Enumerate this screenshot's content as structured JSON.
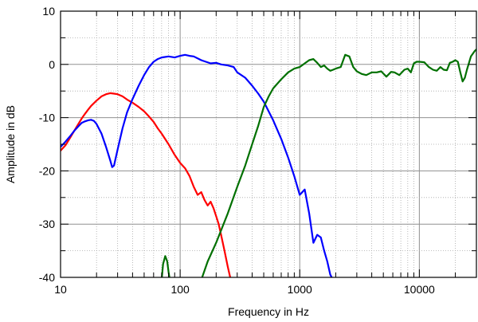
{
  "chart_data": {
    "type": "line",
    "xlabel": "Frequency in Hz",
    "ylabel": "Amplitude in dB",
    "x_scale": "log",
    "xlim": [
      10,
      30000
    ],
    "ylim": [
      -40,
      10
    ],
    "grid": true,
    "x_ticks": [
      {
        "value": 10,
        "label": "10"
      },
      {
        "value": 100,
        "label": "100"
      },
      {
        "value": 1000,
        "label": "1000"
      },
      {
        "value": 10000,
        "label": "10000"
      }
    ],
    "y_ticks": [
      {
        "value": 10,
        "label": "10"
      },
      {
        "value": 0,
        "label": "0"
      },
      {
        "value": -10,
        "label": "-10"
      },
      {
        "value": -20,
        "label": "-20"
      },
      {
        "value": -30,
        "label": "-30"
      },
      {
        "value": -40,
        "label": "-40"
      }
    ],
    "series": [
      {
        "color": "#ff0000",
        "points": [
          [
            10,
            -16.2
          ],
          [
            11,
            -15.2
          ],
          [
            12,
            -13.8
          ],
          [
            13,
            -12.5
          ],
          [
            14,
            -11.3
          ],
          [
            15,
            -10.2
          ],
          [
            16,
            -9.3
          ],
          [
            17,
            -8.5
          ],
          [
            18,
            -7.8
          ],
          [
            20,
            -6.8
          ],
          [
            22,
            -6.0
          ],
          [
            24,
            -5.6
          ],
          [
            26,
            -5.4
          ],
          [
            28,
            -5.5
          ],
          [
            30,
            -5.6
          ],
          [
            33,
            -6.0
          ],
          [
            36,
            -6.6
          ],
          [
            40,
            -7.2
          ],
          [
            45,
            -8.0
          ],
          [
            50,
            -8.8
          ],
          [
            55,
            -9.8
          ],
          [
            60,
            -10.8
          ],
          [
            65,
            -12.0
          ],
          [
            70,
            -13.0
          ],
          [
            80,
            -15.0
          ],
          [
            90,
            -17.0
          ],
          [
            100,
            -18.5
          ],
          [
            110,
            -19.5
          ],
          [
            120,
            -21.0
          ],
          [
            130,
            -23.0
          ],
          [
            140,
            -24.5
          ],
          [
            150,
            -24.0
          ],
          [
            160,
            -25.5
          ],
          [
            170,
            -26.5
          ],
          [
            180,
            -25.8
          ],
          [
            190,
            -27.0
          ],
          [
            200,
            -28.5
          ],
          [
            210,
            -30.0
          ],
          [
            220,
            -32.0
          ],
          [
            235,
            -35.0
          ],
          [
            250,
            -38.0
          ],
          [
            265,
            -40.5
          ]
        ]
      },
      {
        "color": "#0000ff",
        "points": [
          [
            10,
            -15.5
          ],
          [
            11,
            -14.5
          ],
          [
            12,
            -13.5
          ],
          [
            13,
            -12.5
          ],
          [
            14,
            -11.7
          ],
          [
            15,
            -11.0
          ],
          [
            16,
            -10.7
          ],
          [
            17,
            -10.5
          ],
          [
            18,
            -10.4
          ],
          [
            19,
            -10.6
          ],
          [
            20,
            -11.2
          ],
          [
            22,
            -13.0
          ],
          [
            24,
            -15.5
          ],
          [
            26,
            -18.0
          ],
          [
            27,
            -19.3
          ],
          [
            28,
            -19.0
          ],
          [
            30,
            -16.0
          ],
          [
            33,
            -12.0
          ],
          [
            36,
            -9.0
          ],
          [
            40,
            -6.5
          ],
          [
            45,
            -4.0
          ],
          [
            50,
            -2.0
          ],
          [
            55,
            -0.5
          ],
          [
            60,
            0.5
          ],
          [
            65,
            1.0
          ],
          [
            70,
            1.3
          ],
          [
            80,
            1.5
          ],
          [
            90,
            1.3
          ],
          [
            100,
            1.6
          ],
          [
            110,
            1.8
          ],
          [
            120,
            1.6
          ],
          [
            130,
            1.5
          ],
          [
            150,
            0.8
          ],
          [
            180,
            0.2
          ],
          [
            200,
            0.3
          ],
          [
            220,
            0.0
          ],
          [
            250,
            -0.2
          ],
          [
            280,
            -0.5
          ],
          [
            300,
            -1.5
          ],
          [
            350,
            -2.5
          ],
          [
            400,
            -4.0
          ],
          [
            450,
            -5.5
          ],
          [
            500,
            -7.0
          ],
          [
            600,
            -10.5
          ],
          [
            700,
            -14.0
          ],
          [
            800,
            -17.5
          ],
          [
            900,
            -21.0
          ],
          [
            1000,
            -24.5
          ],
          [
            1100,
            -23.5
          ],
          [
            1200,
            -28.0
          ],
          [
            1300,
            -33.5
          ],
          [
            1400,
            -32.0
          ],
          [
            1500,
            -32.5
          ],
          [
            1600,
            -35.0
          ],
          [
            1700,
            -37.0
          ],
          [
            1800,
            -39.5
          ],
          [
            1900,
            -40.5
          ]
        ]
      },
      {
        "color": "#007000",
        "points": [
          [
            70,
            -40.5
          ],
          [
            72,
            -37.5
          ],
          [
            75,
            -36.0
          ],
          [
            78,
            -37.0
          ],
          [
            80,
            -39.0
          ],
          [
            82,
            -40.5
          ],
          [
            150,
            -40.5
          ],
          [
            170,
            -37.0
          ],
          [
            200,
            -33.5
          ],
          [
            250,
            -28.0
          ],
          [
            300,
            -23.0
          ],
          [
            350,
            -19.0
          ],
          [
            400,
            -15.0
          ],
          [
            450,
            -11.5
          ],
          [
            500,
            -8.0
          ],
          [
            550,
            -6.0
          ],
          [
            600,
            -4.5
          ],
          [
            700,
            -2.8
          ],
          [
            800,
            -1.5
          ],
          [
            900,
            -0.8
          ],
          [
            1000,
            -0.5
          ],
          [
            1100,
            0.2
          ],
          [
            1200,
            0.8
          ],
          [
            1300,
            1.0
          ],
          [
            1400,
            0.3
          ],
          [
            1500,
            -0.5
          ],
          [
            1600,
            -0.2
          ],
          [
            1700,
            -0.8
          ],
          [
            1800,
            -1.2
          ],
          [
            1900,
            -1.0
          ],
          [
            2000,
            -0.8
          ],
          [
            2200,
            -0.5
          ],
          [
            2400,
            1.8
          ],
          [
            2600,
            1.5
          ],
          [
            2800,
            -0.5
          ],
          [
            3000,
            -1.3
          ],
          [
            3300,
            -1.8
          ],
          [
            3600,
            -2.0
          ],
          [
            4000,
            -1.5
          ],
          [
            4400,
            -1.5
          ],
          [
            4800,
            -1.3
          ],
          [
            5300,
            -2.3
          ],
          [
            5800,
            -1.4
          ],
          [
            6200,
            -1.5
          ],
          [
            6800,
            -2.0
          ],
          [
            7500,
            -1.0
          ],
          [
            8000,
            -0.8
          ],
          [
            8500,
            -1.5
          ],
          [
            9000,
            0.2
          ],
          [
            9500,
            0.5
          ],
          [
            10000,
            0.5
          ],
          [
            11000,
            0.4
          ],
          [
            12000,
            -0.5
          ],
          [
            13000,
            -1.0
          ],
          [
            14000,
            -1.2
          ],
          [
            15000,
            -0.5
          ],
          [
            16000,
            -1.0
          ],
          [
            17000,
            -1.1
          ],
          [
            18000,
            0.3
          ],
          [
            19000,
            0.5
          ],
          [
            20000,
            0.8
          ],
          [
            21000,
            0.5
          ],
          [
            22000,
            -1.5
          ],
          [
            23000,
            -3.2
          ],
          [
            24000,
            -2.5
          ],
          [
            25000,
            -1.0
          ],
          [
            26000,
            0.3
          ],
          [
            27000,
            1.5
          ],
          [
            28000,
            2.0
          ],
          [
            29000,
            2.5
          ],
          [
            30000,
            2.8
          ]
        ]
      }
    ]
  }
}
